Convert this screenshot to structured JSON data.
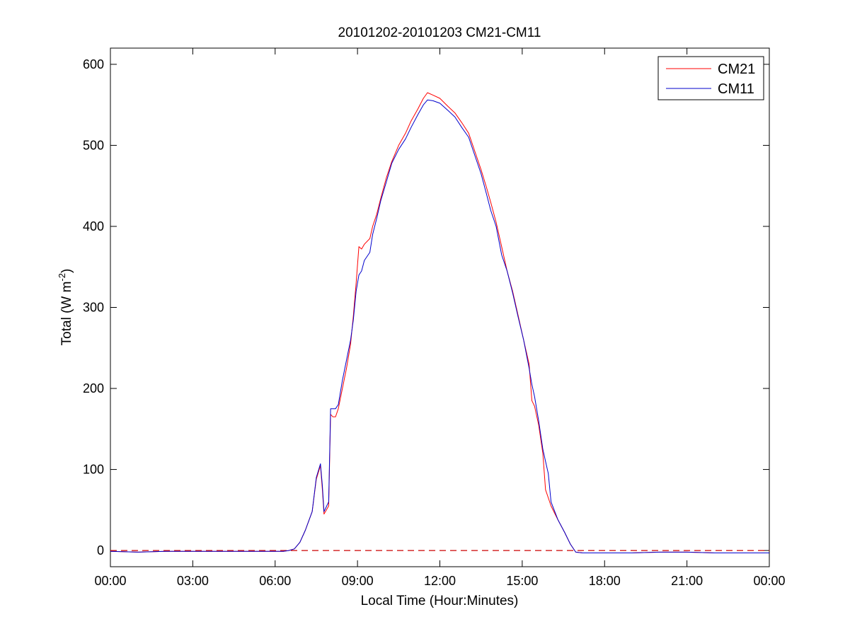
{
  "chart_data": {
    "type": "line",
    "title": "20101202-20101203 CM21-CM11",
    "xlabel": "Local Time (Hour:Minutes)",
    "ylabel_main": "Total (W m",
    "ylabel_sup": "-2",
    "ylabel_close": ")",
    "xlim": [
      0,
      24
    ],
    "ylim": [
      -20,
      620
    ],
    "x_ticks": [
      0,
      3,
      6,
      9,
      12,
      15,
      18,
      21,
      24
    ],
    "x_tick_labels": [
      "00:00",
      "03:00",
      "06:00",
      "09:00",
      "12:00",
      "15:00",
      "18:00",
      "21:00",
      "00:00"
    ],
    "y_ticks": [
      0,
      100,
      200,
      300,
      400,
      500,
      600
    ],
    "y_tick_labels": [
      "0",
      "100",
      "200",
      "300",
      "400",
      "500",
      "600"
    ],
    "grid": false,
    "legend_position": "top-right",
    "reference_line": {
      "y": 0,
      "style": "dashed",
      "color": "#cc0000"
    },
    "series": [
      {
        "name": "CM21",
        "color": "#ff0000",
        "points": [
          [
            0,
            -1
          ],
          [
            1,
            -2
          ],
          [
            2,
            -1
          ],
          [
            3,
            -1
          ],
          [
            4,
            -1
          ],
          [
            5,
            -1
          ],
          [
            6,
            -1
          ],
          [
            6.3,
            -1
          ],
          [
            6.5,
            0
          ],
          [
            6.7,
            2
          ],
          [
            6.9,
            10
          ],
          [
            7.1,
            25
          ],
          [
            7.35,
            48
          ],
          [
            7.5,
            88
          ],
          [
            7.65,
            105
          ],
          [
            7.72,
            75
          ],
          [
            7.78,
            45
          ],
          [
            7.95,
            55
          ],
          [
            8.02,
            168
          ],
          [
            8.1,
            165
          ],
          [
            8.2,
            165
          ],
          [
            8.3,
            175
          ],
          [
            8.45,
            200
          ],
          [
            8.6,
            225
          ],
          [
            8.75,
            255
          ],
          [
            8.85,
            290
          ],
          [
            8.95,
            330
          ],
          [
            9.05,
            375
          ],
          [
            9.15,
            372
          ],
          [
            9.25,
            378
          ],
          [
            9.45,
            385
          ],
          [
            9.55,
            400
          ],
          [
            9.7,
            415
          ],
          [
            9.85,
            435
          ],
          [
            10.05,
            460
          ],
          [
            10.25,
            480
          ],
          [
            10.5,
            500
          ],
          [
            10.75,
            515
          ],
          [
            10.95,
            530
          ],
          [
            11.2,
            545
          ],
          [
            11.4,
            558
          ],
          [
            11.55,
            565
          ],
          [
            11.75,
            562
          ],
          [
            12.0,
            558
          ],
          [
            12.3,
            548
          ],
          [
            12.55,
            540
          ],
          [
            12.8,
            528
          ],
          [
            13.05,
            515
          ],
          [
            13.3,
            490
          ],
          [
            13.5,
            470
          ],
          [
            13.7,
            448
          ],
          [
            13.85,
            430
          ],
          [
            14.05,
            405
          ],
          [
            14.25,
            375
          ],
          [
            14.45,
            345
          ],
          [
            14.65,
            320
          ],
          [
            14.85,
            290
          ],
          [
            15.05,
            260
          ],
          [
            15.25,
            230
          ],
          [
            15.35,
            185
          ],
          [
            15.45,
            178
          ],
          [
            15.6,
            155
          ],
          [
            15.75,
            120
          ],
          [
            15.85,
            75
          ],
          [
            15.95,
            65
          ],
          [
            16.05,
            55
          ],
          [
            16.3,
            38
          ],
          [
            16.55,
            22
          ],
          [
            16.75,
            8
          ],
          [
            16.95,
            -2
          ],
          [
            17.2,
            -3
          ],
          [
            18,
            -3
          ],
          [
            19,
            -3
          ],
          [
            20,
            -2
          ],
          [
            21,
            -2
          ],
          [
            22,
            -3
          ],
          [
            23,
            -3
          ],
          [
            23.5,
            -3
          ],
          [
            24,
            -3
          ]
        ]
      },
      {
        "name": "CM11",
        "color": "#0000cc",
        "points": [
          [
            0,
            -1
          ],
          [
            1,
            -2
          ],
          [
            2,
            -1
          ],
          [
            3,
            -1
          ],
          [
            4,
            -1
          ],
          [
            5,
            -1
          ],
          [
            6,
            -1
          ],
          [
            6.3,
            -1
          ],
          [
            6.5,
            0
          ],
          [
            6.7,
            2
          ],
          [
            6.9,
            10
          ],
          [
            7.1,
            25
          ],
          [
            7.35,
            48
          ],
          [
            7.5,
            90
          ],
          [
            7.65,
            107
          ],
          [
            7.72,
            80
          ],
          [
            7.78,
            48
          ],
          [
            7.95,
            60
          ],
          [
            8.02,
            175
          ],
          [
            8.1,
            175
          ],
          [
            8.2,
            175
          ],
          [
            8.3,
            180
          ],
          [
            8.45,
            210
          ],
          [
            8.6,
            235
          ],
          [
            8.75,
            260
          ],
          [
            8.85,
            285
          ],
          [
            8.95,
            320
          ],
          [
            9.05,
            340
          ],
          [
            9.15,
            345
          ],
          [
            9.25,
            358
          ],
          [
            9.45,
            368
          ],
          [
            9.55,
            390
          ],
          [
            9.7,
            410
          ],
          [
            9.85,
            432
          ],
          [
            10.05,
            455
          ],
          [
            10.25,
            478
          ],
          [
            10.5,
            495
          ],
          [
            10.75,
            508
          ],
          [
            10.95,
            522
          ],
          [
            11.2,
            538
          ],
          [
            11.4,
            550
          ],
          [
            11.55,
            556
          ],
          [
            11.75,
            555
          ],
          [
            12.0,
            552
          ],
          [
            12.3,
            543
          ],
          [
            12.55,
            535
          ],
          [
            12.8,
            522
          ],
          [
            13.05,
            510
          ],
          [
            13.3,
            485
          ],
          [
            13.5,
            465
          ],
          [
            13.7,
            440
          ],
          [
            13.85,
            420
          ],
          [
            14.05,
            400
          ],
          [
            14.25,
            365
          ],
          [
            14.45,
            345
          ],
          [
            14.65,
            318
          ],
          [
            14.85,
            288
          ],
          [
            15.05,
            260
          ],
          [
            15.25,
            225
          ],
          [
            15.35,
            205
          ],
          [
            15.45,
            190
          ],
          [
            15.6,
            160
          ],
          [
            15.75,
            125
          ],
          [
            15.85,
            110
          ],
          [
            15.95,
            95
          ],
          [
            16.05,
            60
          ],
          [
            16.3,
            38
          ],
          [
            16.55,
            22
          ],
          [
            16.75,
            8
          ],
          [
            16.95,
            -2
          ],
          [
            17.2,
            -3
          ],
          [
            18,
            -3
          ],
          [
            19,
            -3
          ],
          [
            20,
            -2
          ],
          [
            21,
            -2
          ],
          [
            22,
            -3
          ],
          [
            23,
            -3
          ],
          [
            23.5,
            -3
          ],
          [
            24,
            -3
          ]
        ]
      }
    ]
  }
}
